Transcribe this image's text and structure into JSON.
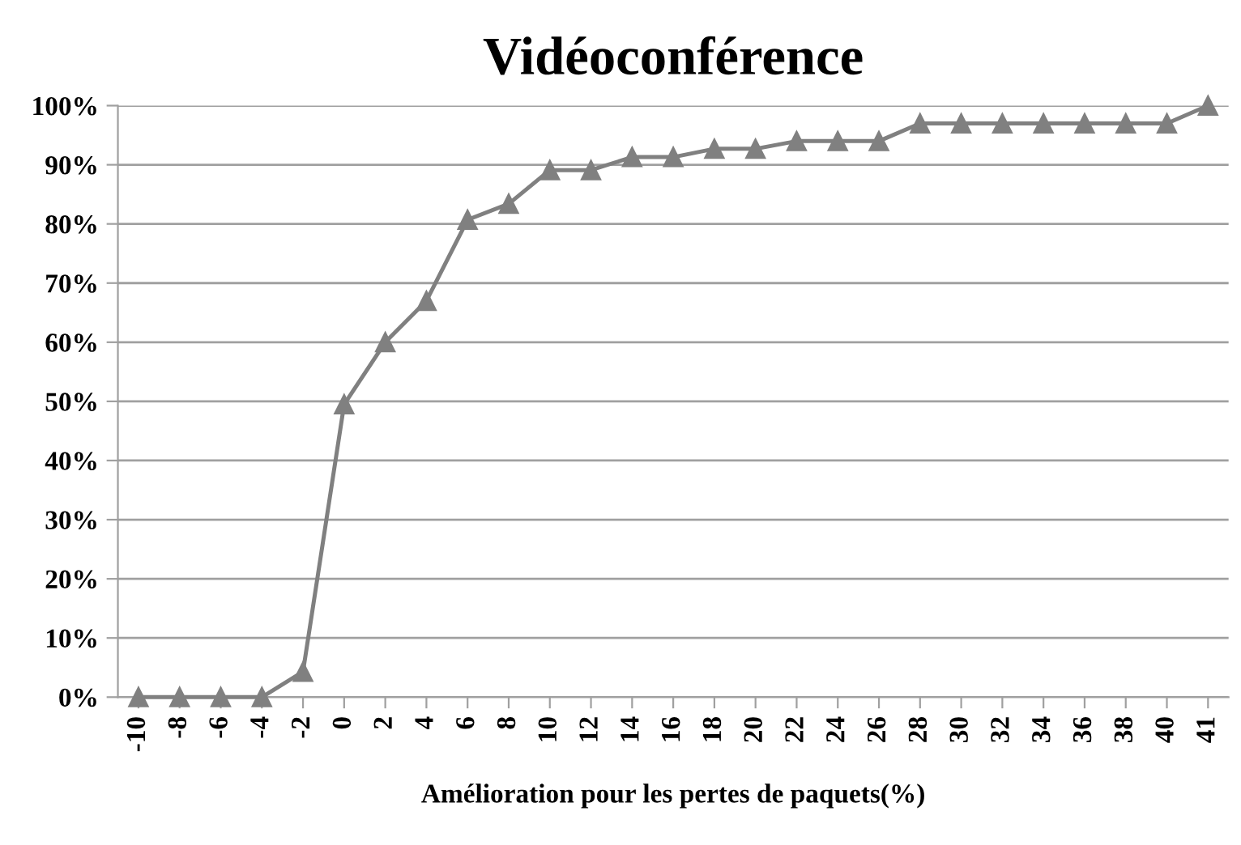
{
  "chart_data": {
    "type": "line",
    "title": "Vidéoconférence",
    "xlabel": "Amélioration pour les pertes de paquets(%)",
    "categories": [
      "-10",
      "-8",
      "-6",
      "-4",
      "-2",
      "0",
      "2",
      "4",
      "6",
      "8",
      "10",
      "12",
      "14",
      "16",
      "18",
      "20",
      "22",
      "24",
      "26",
      "28",
      "30",
      "32",
      "34",
      "36",
      "38",
      "40",
      "41"
    ],
    "series": [
      {
        "color": "#808080",
        "values": [
          0,
          0,
          0,
          0,
          4.3,
          49.5,
          60,
          67,
          80.7,
          83.4,
          89.1,
          89.1,
          91.3,
          91.3,
          92.7,
          92.7,
          94,
          94,
          94,
          97,
          97,
          97,
          97,
          97,
          97,
          97,
          100
        ]
      }
    ],
    "ylim": [
      0,
      100
    ],
    "yticks": [
      {
        "value": 0,
        "label": "0%"
      },
      {
        "value": 10,
        "label": "10%"
      },
      {
        "value": 20,
        "label": "20%"
      },
      {
        "value": 30,
        "label": "30%"
      },
      {
        "value": 40,
        "label": "40%"
      },
      {
        "value": 50,
        "label": "50%"
      },
      {
        "value": 60,
        "label": "60%"
      },
      {
        "value": 70,
        "label": "70%"
      },
      {
        "value": 80,
        "label": "80%"
      },
      {
        "value": 90,
        "label": "90%"
      },
      {
        "value": 100,
        "label": "100%"
      }
    ],
    "grid": "y",
    "marker": "triangle",
    "line_style": "solid"
  }
}
